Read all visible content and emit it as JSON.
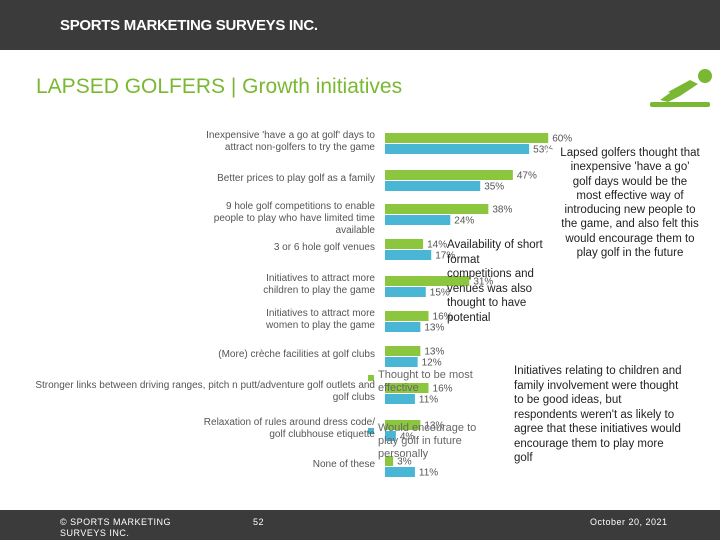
{
  "header": {
    "brand": "SPORTS MARKETING SURVEYS INC."
  },
  "footer": {
    "copyright": "© SPORTS MARKETING SURVEYS INC.",
    "page": "52",
    "date": "October 20, 2021"
  },
  "chart_data": {
    "type": "bar",
    "orientation": "horizontal",
    "title": "LAPSED GOLFERS | Growth initiatives",
    "categories": [
      "Inexpensive 'have a go at golf' days to attract non-golfers to try the game",
      "Better prices to play golf as a family",
      "9 hole golf competitions to enable people to play who have limited time available",
      "3 or 6 hole golf venues",
      "Initiatives to attract more children to play the game",
      "Initiatives to attract more women to play the game",
      "(More) crèche facilities at golf clubs",
      "Stronger links between driving ranges, pitch n putt/adventure golf outlets and golf clubs",
      "Relaxation of rules around dress code/ golf clubhouse etiquette",
      "None of these"
    ],
    "series": [
      {
        "name": "Thought to be most effective",
        "color": "#8cc63f",
        "values": [
          60,
          47,
          38,
          14,
          31,
          16,
          13,
          16,
          13,
          3
        ],
        "value_labels": [
          "60%",
          "47%",
          "38%",
          "14%",
          "31%",
          "16%",
          "13%",
          "16%",
          "13%",
          "3%"
        ]
      },
      {
        "name": "Would encourage to play golf in future personally",
        "color": "#4ab6d6",
        "values": [
          53,
          35,
          24,
          17,
          15,
          13,
          12,
          11,
          4,
          11
        ],
        "value_labels": [
          "53%",
          "35%",
          "24%",
          "17%",
          "15%",
          "13%",
          "12%",
          "11%",
          "4%",
          "11%"
        ]
      }
    ],
    "annotations": [
      "Availability of short format competitions and venues was also thought to have potential",
      "Lapsed golfers thought that inexpensive 'have a go' golf days would be the most effective way of introducing new people to the game, and also felt this would encourage them to play golf in the future",
      "Initiatives relating to children and family involvement were thought to be good ideas, but respondents weren't as likely to agree that these initiatives would encourage them to play more golf"
    ]
  }
}
